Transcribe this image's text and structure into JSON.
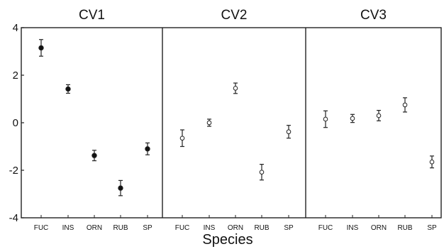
{
  "chart_data": {
    "type": "scatter",
    "xlabel": "Species",
    "ylabel": "",
    "ylim": [
      -4,
      4
    ],
    "yticks": [
      "4",
      "2",
      "0",
      "-2",
      "-4"
    ],
    "categories": [
      "FUC",
      "INS",
      "ORN",
      "RUB",
      "SP"
    ],
    "panels": [
      {
        "title": "CV1",
        "marker": "filled",
        "points": [
          {
            "x": "FUC",
            "y": 3.15,
            "err": 0.35
          },
          {
            "x": "INS",
            "y": 1.42,
            "err": 0.18
          },
          {
            "x": "ORN",
            "y": -1.38,
            "err": 0.22
          },
          {
            "x": "RUB",
            "y": -2.75,
            "err": 0.32
          },
          {
            "x": "SP",
            "y": -1.1,
            "err": 0.25
          }
        ]
      },
      {
        "title": "CV2",
        "marker": "open",
        "points": [
          {
            "x": "FUC",
            "y": -0.65,
            "err": 0.35
          },
          {
            "x": "INS",
            "y": 0.0,
            "err": 0.15
          },
          {
            "x": "ORN",
            "y": 1.45,
            "err": 0.22
          },
          {
            "x": "RUB",
            "y": -2.08,
            "err": 0.33
          },
          {
            "x": "SP",
            "y": -0.38,
            "err": 0.27
          }
        ]
      },
      {
        "title": "CV3",
        "marker": "open",
        "points": [
          {
            "x": "FUC",
            "y": 0.15,
            "err": 0.35
          },
          {
            "x": "INS",
            "y": 0.18,
            "err": 0.17
          },
          {
            "x": "ORN",
            "y": 0.3,
            "err": 0.22
          },
          {
            "x": "RUB",
            "y": 0.75,
            "err": 0.3
          },
          {
            "x": "SP",
            "y": -1.65,
            "err": 0.25
          }
        ]
      }
    ]
  }
}
